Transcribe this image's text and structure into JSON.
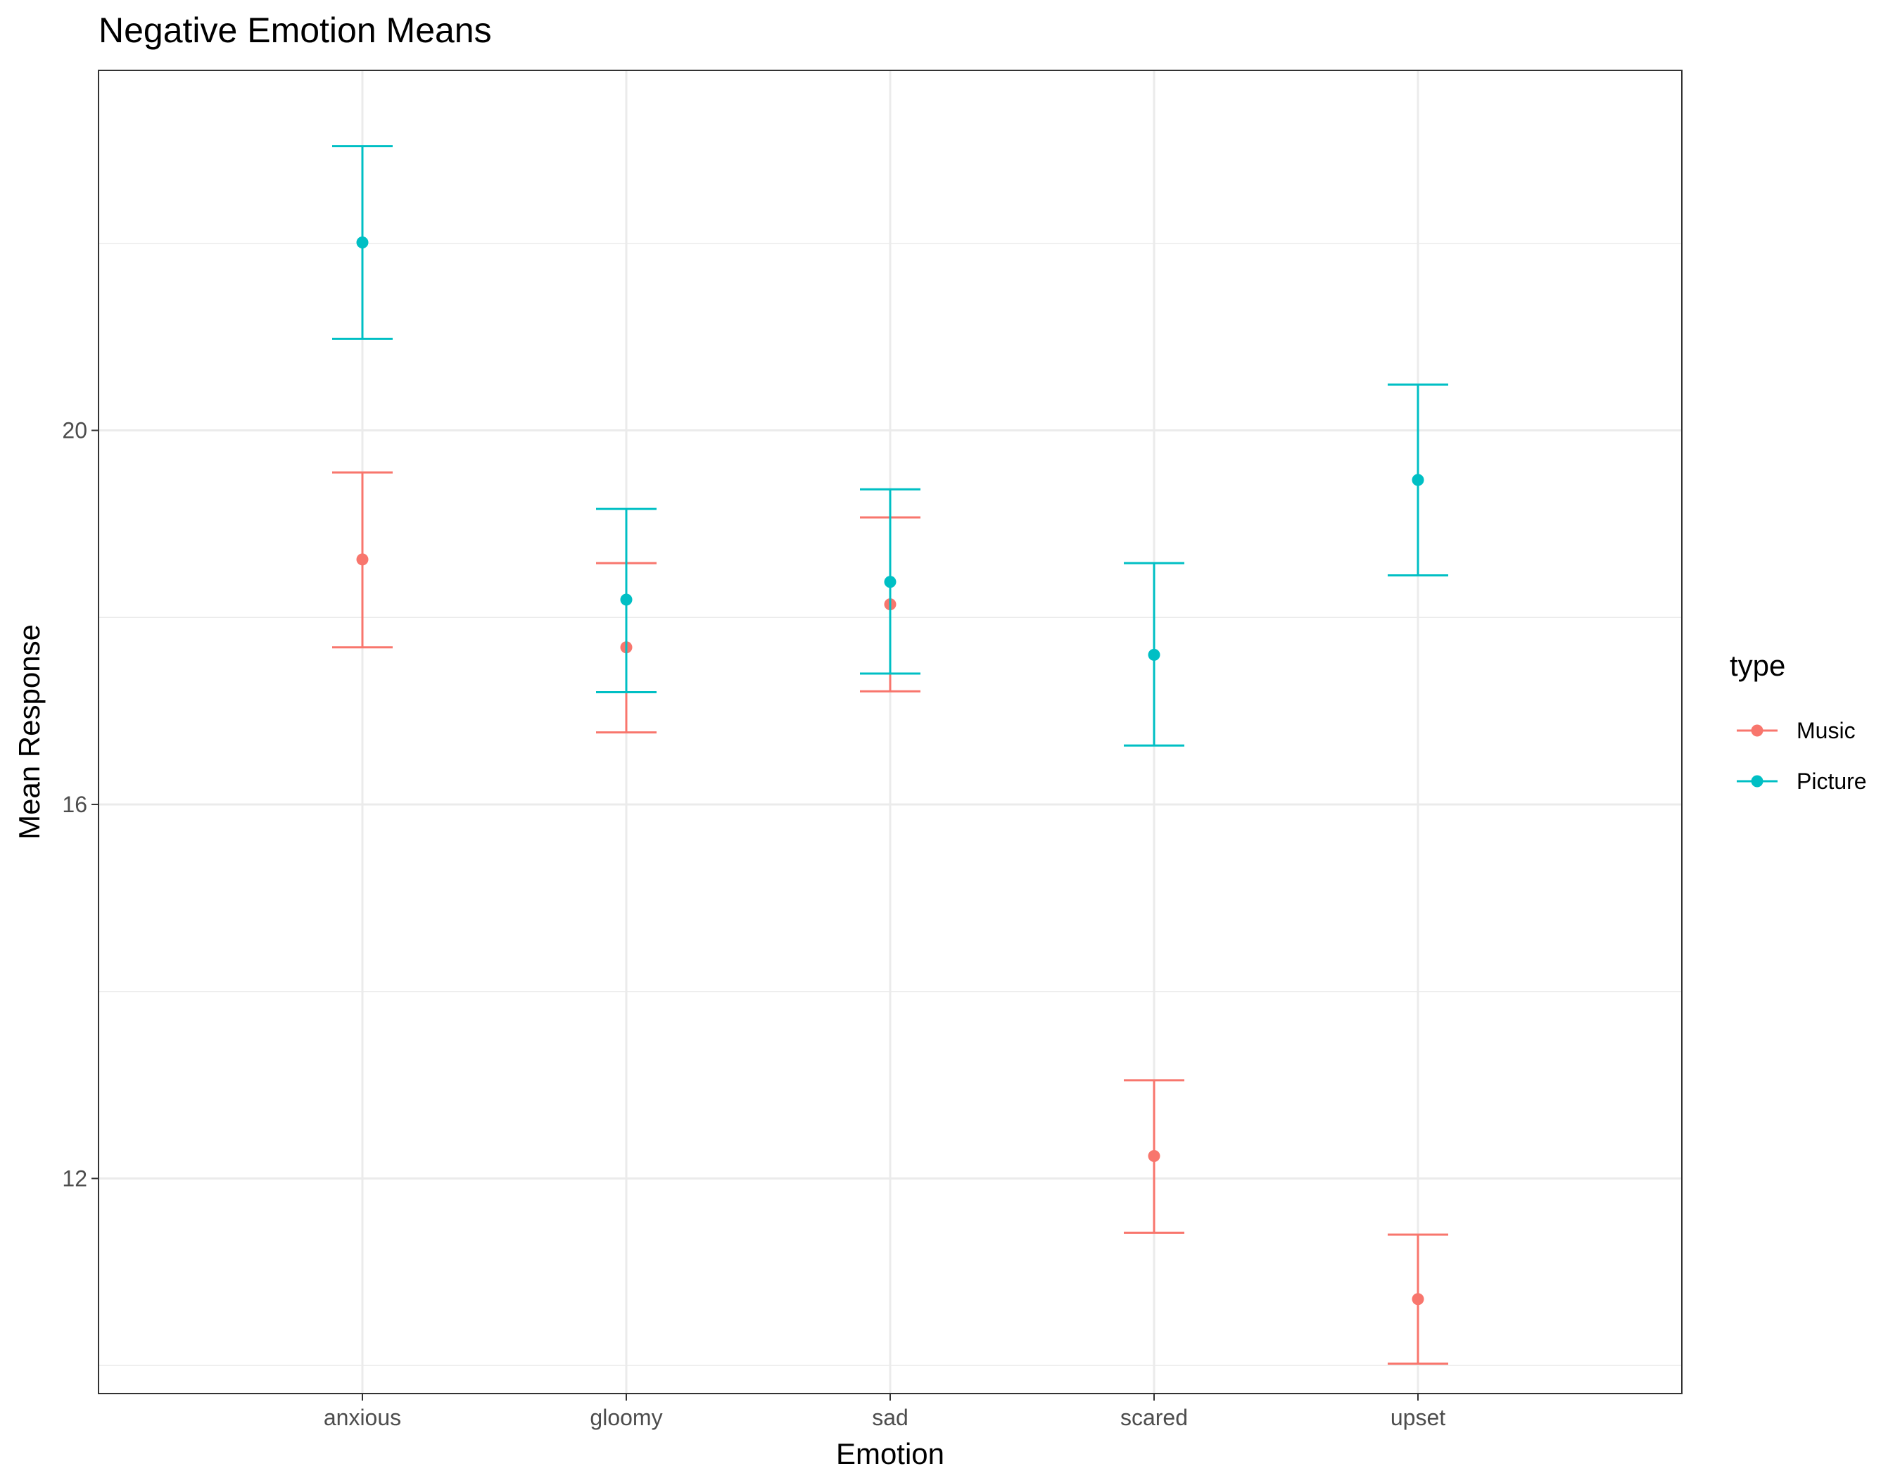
{
  "chart_data": {
    "type": "errorbar",
    "title": "Negative Emotion Means",
    "xlabel": "Emotion",
    "ylabel": "Mean Response",
    "categories": [
      "anxious",
      "gloomy",
      "sad",
      "scared",
      "upset"
    ],
    "ylim": [
      9.7,
      23.85
    ],
    "yticks": [
      12,
      16,
      20
    ],
    "grid": true,
    "legend": {
      "title": "type",
      "position": "right"
    },
    "series": [
      {
        "name": "Music",
        "color": "#F8766D",
        "means": [
          18.62,
          17.68,
          18.14,
          12.24,
          10.71
        ],
        "lower": [
          17.68,
          16.77,
          17.21,
          11.42,
          10.02
        ],
        "upper": [
          19.55,
          18.58,
          19.07,
          13.05,
          11.4
        ]
      },
      {
        "name": "Picture",
        "color": "#00BFC4",
        "means": [
          22.01,
          18.19,
          18.38,
          17.6,
          19.47
        ],
        "lower": [
          20.98,
          17.2,
          17.4,
          16.63,
          18.45
        ],
        "upper": [
          23.04,
          19.16,
          19.37,
          18.58,
          20.49
        ]
      }
    ]
  }
}
